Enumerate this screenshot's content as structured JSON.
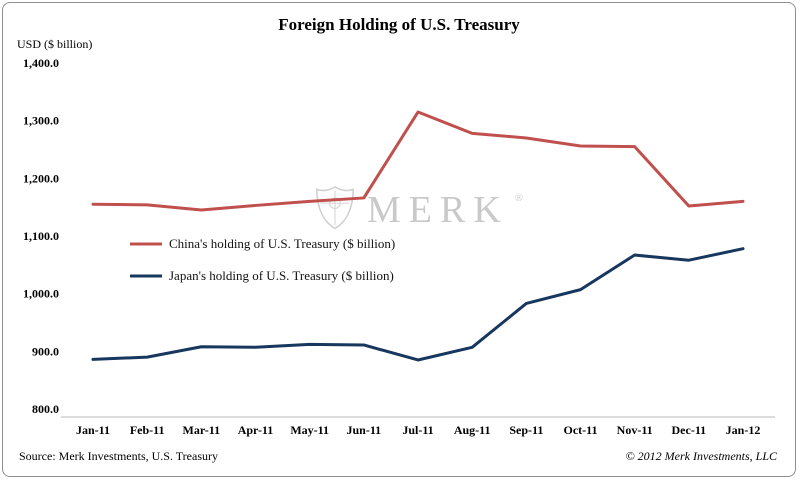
{
  "chart": {
    "title": "Foreign Holding of U.S. Treasury",
    "ylabel": "USD ($ billion)",
    "watermark": "MERK",
    "watermark_reg": "®"
  },
  "chart_data": {
    "type": "line",
    "categories": [
      "Jan-11",
      "Feb-11",
      "Mar-11",
      "Apr-11",
      "May-11",
      "Jun-11",
      "Jul-11",
      "Aug-11",
      "Sep-11",
      "Oct-11",
      "Nov-11",
      "Dec-11",
      "Jan-12"
    ],
    "series": [
      {
        "name": "China's holding of U.S. Treasury ($ billion)",
        "color": "#c0504d",
        "values": [
          1155,
          1154,
          1145,
          1153,
          1160,
          1166,
          1315,
          1278,
          1270,
          1256,
          1255,
          1152,
          1160
        ]
      },
      {
        "name": "Japan's holding of U.S. Treasury ($ billion)",
        "color": "#17375e",
        "values": [
          886,
          890,
          908,
          907,
          912,
          911,
          885,
          907,
          983,
          1007,
          1067,
          1058,
          1078
        ]
      }
    ],
    "ylim": [
      800,
      1400
    ],
    "ytick_step": 100,
    "ytick_labels": [
      "800.0",
      "900.0",
      "1,000.0",
      "1,100.0",
      "1,200.0",
      "1,300.0",
      "1,400.0"
    ],
    "grid": false,
    "legend_position": "inside-left"
  },
  "footer": {
    "source": "Source: Merk Investments, U.S. Treasury",
    "copyright": "© 2012 Merk Investments, LLC"
  }
}
